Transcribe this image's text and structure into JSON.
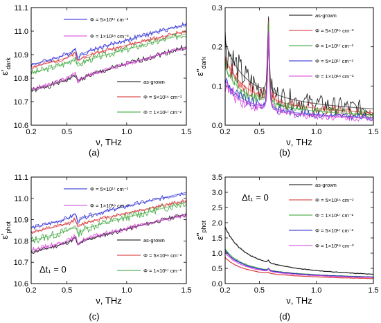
{
  "chart_data": [
    {
      "type": "line",
      "panel_label": "(a)",
      "xlabel": "ν, THz",
      "ylabel": "ε'",
      "ylabel_sub": "dark",
      "xlim": [
        0.2,
        1.5
      ],
      "ylim": [
        10.6,
        11.1
      ],
      "xticks": [
        0.2,
        0.5,
        1.0,
        1.5
      ],
      "xtick_labels": [
        "0.2",
        "0.5",
        "1.0",
        "1.5"
      ],
      "yticks": [
        10.6,
        10.7,
        10.8,
        10.9,
        11.0,
        11.1
      ],
      "ytick_labels": [
        "10.6",
        "10.7",
        "10.8",
        "10.9",
        "11.0",
        "11.1"
      ],
      "legend": {
        "placement": "split",
        "annotation": ""
      },
      "series": [
        {
          "name": "as-grown",
          "color": "#000000",
          "legend_group": "bottom-right",
          "base": 10.745,
          "slope": 0.145,
          "res": 0.07,
          "noise": 0.012,
          "seed": 1
        },
        {
          "name": "Φ = 5×10¹⁶ cm⁻²",
          "color": "#d62728",
          "legend_group": "bottom-right",
          "base": 10.845,
          "slope": 0.12,
          "res": 0.09,
          "noise": 0.01,
          "seed": 2
        },
        {
          "name": "Φ = 1×10¹⁷ cm⁻²",
          "color": "#2ca02c",
          "legend_group": "bottom-right",
          "base": 10.82,
          "slope": 0.13,
          "res": 0.09,
          "noise": 0.015,
          "seed": 3
        },
        {
          "name": "Φ = 5×10¹⁷ cm⁻²",
          "color": "#1f1fd6",
          "legend_group": "top-left",
          "base": 10.855,
          "slope": 0.135,
          "res": 0.09,
          "noise": 0.011,
          "seed": 4
        },
        {
          "name": "Φ = 1×10¹⁸ cm⁻²",
          "color": "#d63cd6",
          "legend_group": "top-left",
          "base": 10.75,
          "slope": 0.14,
          "res": 0.08,
          "noise": 0.011,
          "seed": 5
        }
      ]
    },
    {
      "type": "line",
      "panel_label": "(b)",
      "xlabel": "ν, THz",
      "ylabel": "ε''",
      "ylabel_sub": "dark",
      "xlim": [
        0.2,
        1.5
      ],
      "ylim": [
        0.0,
        0.3
      ],
      "xticks": [
        0.2,
        0.5,
        1.0,
        1.5
      ],
      "xtick_labels": [
        "0.2",
        "0.5",
        "1.0",
        "1.5"
      ],
      "yticks": [
        0.0,
        0.1,
        0.2,
        0.3
      ],
      "ytick_labels": [
        "0.0",
        "0.1",
        "0.2",
        "0.3"
      ],
      "legend": {
        "placement": "top-right",
        "annotation": ""
      },
      "series": [
        {
          "name": "as-grown",
          "color": "#000000",
          "legend_group": "top-right",
          "a": 0.015,
          "b": 0.04,
          "pk": 0.27,
          "noise": 0.015,
          "seed": 6
        },
        {
          "name": "Φ = 5×10¹⁶ cm⁻²",
          "color": "#d62728",
          "legend_group": "top-right",
          "a": 0.01,
          "b": 0.033,
          "pk": 0.26,
          "noise": 0.008,
          "seed": 7
        },
        {
          "name": "Φ = 1×10¹⁷ cm⁻²",
          "color": "#2ca02c",
          "legend_group": "top-right",
          "a": 0.008,
          "b": 0.028,
          "pk": 0.25,
          "noise": 0.008,
          "seed": 8
        },
        {
          "name": "Φ = 5×10¹⁷ cm⁻²",
          "color": "#1f1fd6",
          "legend_group": "top-right",
          "a": 0.005,
          "b": 0.022,
          "pk": 0.24,
          "noise": 0.006,
          "seed": 9
        },
        {
          "name": "Φ = 1×10¹⁸ cm⁻²",
          "color": "#d63cd6",
          "legend_group": "top-right",
          "a": 0.004,
          "b": 0.02,
          "pk": 0.24,
          "noise": 0.006,
          "seed": 10
        }
      ]
    },
    {
      "type": "line",
      "panel_label": "(c)",
      "xlabel": "ν, THz",
      "ylabel": "ε'",
      "ylabel_sub": "phot",
      "xlim": [
        0.2,
        1.5
      ],
      "ylim": [
        10.6,
        11.1
      ],
      "xticks": [
        0.2,
        0.5,
        1.0,
        1.5
      ],
      "xtick_labels": [
        "0.2",
        "0.5",
        "1.0",
        "1.5"
      ],
      "yticks": [
        10.6,
        10.7,
        10.8,
        10.9,
        11.0,
        11.1
      ],
      "ytick_labels": [
        "10.6",
        "10.7",
        "10.8",
        "10.9",
        "11.0",
        "11.1"
      ],
      "legend": {
        "placement": "split",
        "annotation": "Δt₁ = 0"
      },
      "series": [
        {
          "name": "as-grown",
          "color": "#000000",
          "legend_group": "bottom-right",
          "base": 10.745,
          "slope": 0.14,
          "res": 0.08,
          "noise": 0.01,
          "seed": 11
        },
        {
          "name": "Φ = 5×10¹⁶ cm⁻²",
          "color": "#d62728",
          "legend_group": "bottom-right",
          "base": 10.84,
          "slope": 0.115,
          "res": 0.09,
          "noise": 0.01,
          "seed": 12
        },
        {
          "name": "Φ = 1×10¹⁷ cm⁻²",
          "color": "#2ca02c",
          "legend_group": "bottom-right",
          "base": 10.8,
          "slope": 0.14,
          "res": 0.09,
          "noise": 0.02,
          "seed": 13
        },
        {
          "name": "Φ = 5×10¹⁷ cm⁻²",
          "color": "#1f1fd6",
          "legend_group": "top-left",
          "base": 10.86,
          "slope": 0.13,
          "res": 0.09,
          "noise": 0.011,
          "seed": 14
        },
        {
          "name": "Φ = 1×10¹⁸ cm⁻²",
          "color": "#d63cd6",
          "legend_group": "top-left",
          "base": 10.755,
          "slope": 0.13,
          "res": 0.08,
          "noise": 0.012,
          "seed": 15
        }
      ]
    },
    {
      "type": "line",
      "panel_label": "(d)",
      "xlabel": "ν, THz",
      "ylabel": "ε''",
      "ylabel_sub": "phot",
      "xlim": [
        0.2,
        1.5
      ],
      "ylim": [
        0.0,
        3.5
      ],
      "xticks": [
        0.2,
        0.5,
        1.0,
        1.5
      ],
      "xtick_labels": [
        "0.2",
        "0.5",
        "1.0",
        "1.5"
      ],
      "yticks": [
        0.0,
        0.5,
        1.0,
        1.5,
        2.0,
        2.5,
        3.0,
        3.5
      ],
      "ytick_labels": [
        "0.0",
        "0.5",
        "1.0",
        "1.5",
        "2.0",
        "2.5",
        "3.0",
        "3.5"
      ],
      "legend": {
        "placement": "top-right",
        "annotation": "Δt₁ = 0"
      },
      "series": [
        {
          "name": "as-grown",
          "color": "#000000",
          "legend_group": "top-right",
          "a": 0.07,
          "b": 0.36,
          "pk": 0.78,
          "noise": 0.01,
          "seed": 16
        },
        {
          "name": "Φ = 5×10¹⁶ cm⁻²",
          "color": "#d62728",
          "legend_group": "top-right",
          "a": 0.06,
          "b": 0.16,
          "pk": 0.38,
          "noise": 0.006,
          "seed": 17
        },
        {
          "name": "Φ = 1×10¹⁷ cm⁻²",
          "color": "#2ca02c",
          "legend_group": "top-right",
          "a": 0.08,
          "b": 0.21,
          "pk": 0.5,
          "noise": 0.006,
          "seed": 18
        },
        {
          "name": "Φ = 5×10¹⁷ cm⁻²",
          "color": "#1f1fd6",
          "legend_group": "top-right",
          "a": 0.08,
          "b": 0.2,
          "pk": 0.5,
          "noise": 0.006,
          "seed": 19
        },
        {
          "name": "Φ = 1×10¹⁸ cm⁻²",
          "color": "#d63cd6",
          "legend_group": "top-right",
          "a": 0.07,
          "b": 0.19,
          "pk": 0.48,
          "noise": 0.006,
          "seed": 20
        }
      ]
    }
  ]
}
